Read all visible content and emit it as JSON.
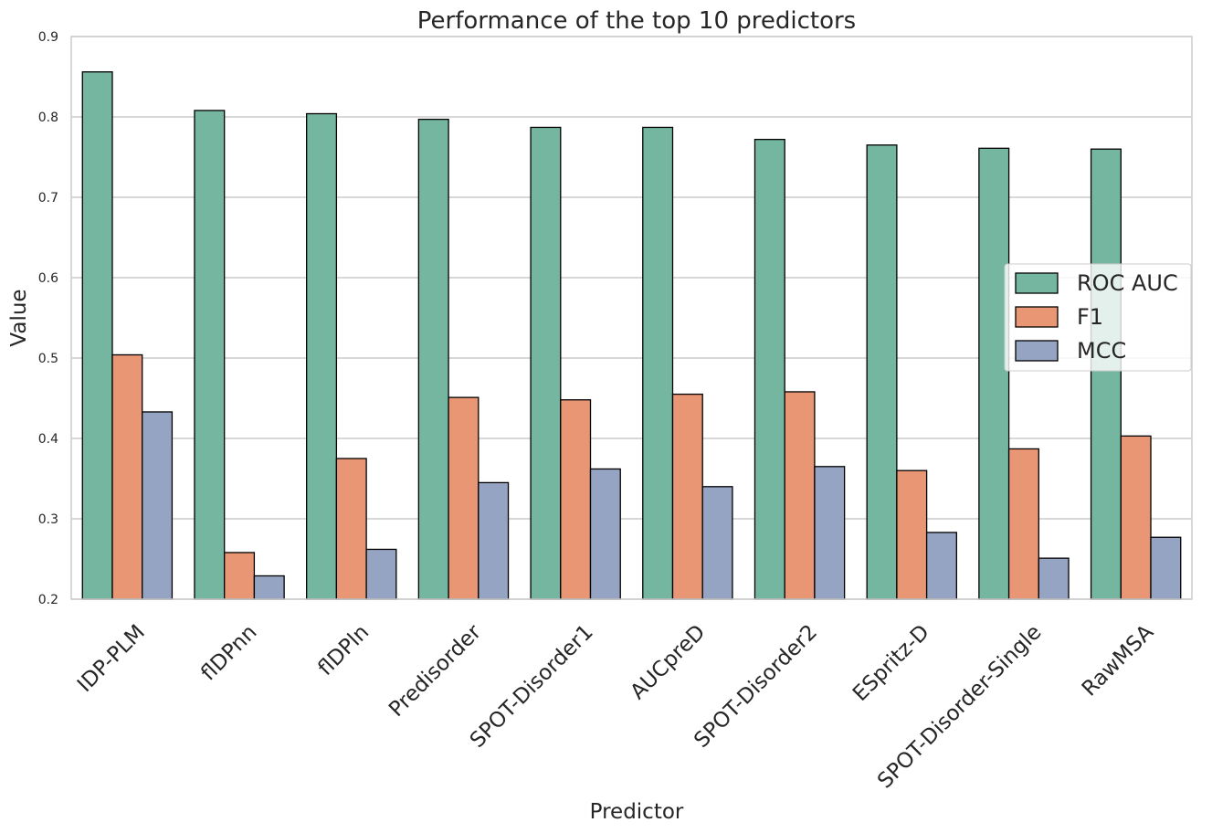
{
  "chart_data": {
    "type": "bar",
    "title": "Performance of the top 10 predictors",
    "xlabel": "Predictor",
    "ylabel": "Value",
    "ylim": [
      0.2,
      0.9
    ],
    "yticks": [
      "0.2",
      "0.3",
      "0.4",
      "0.5",
      "0.6",
      "0.7",
      "0.8",
      "0.9"
    ],
    "grid": "horizontal",
    "legend_position": "center-right",
    "categories": [
      "IDP-PLM",
      "flDPnn",
      "flDPln",
      "Predisorder",
      "SPOT-Disorder1",
      "AUCpreD",
      "SPOT-Disorder2",
      "ESpritz-D",
      "SPOT-Disorder-Single",
      "RawMSA"
    ],
    "series": [
      {
        "name": "ROC AUC",
        "color": "#75b6a1",
        "values": [
          0.856,
          0.808,
          0.804,
          0.797,
          0.787,
          0.787,
          0.772,
          0.765,
          0.761,
          0.76
        ]
      },
      {
        "name": "F1",
        "color": "#e99675",
        "values": [
          0.504,
          0.258,
          0.375,
          0.451,
          0.448,
          0.455,
          0.458,
          0.36,
          0.387,
          0.403
        ]
      },
      {
        "name": "MCC",
        "color": "#96a4c3",
        "values": [
          0.433,
          0.229,
          0.262,
          0.345,
          0.362,
          0.34,
          0.365,
          0.283,
          0.251,
          0.277
        ]
      }
    ]
  }
}
